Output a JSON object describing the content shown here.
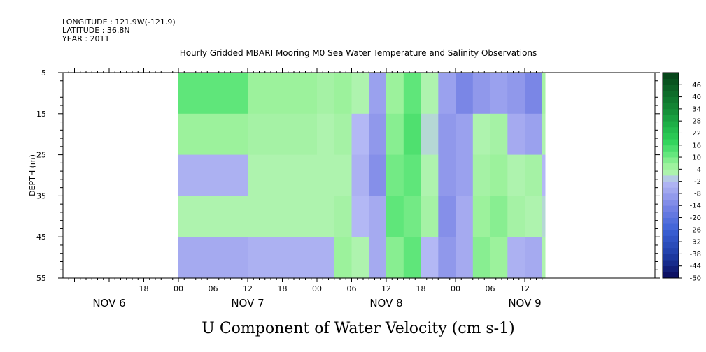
{
  "header": {
    "longitude": "LONGITUDE : 121.9W(-121.9)",
    "latitude": "LATITUDE : 36.8N",
    "year": "YEAR : 2011"
  },
  "chart_data": {
    "type": "heatmap",
    "title": "Hourly Gridded MBARI Mooring M0 Sea Water Temperature and Salinity Observations",
    "xlabel": "",
    "ylabel": "DEPTH (m)",
    "subtitle": "U Component of Water Velocity (cm s-1)",
    "x_tick_labels": [
      "18",
      "00",
      "06",
      "12",
      "18",
      "00",
      "06",
      "12",
      "18",
      "00",
      "06",
      "12"
    ],
    "x_day_labels": [
      "NOV 6",
      "NOV 7",
      "NOV 8",
      "NOV 9"
    ],
    "y_tick_labels": [
      "5",
      "15",
      "25",
      "35",
      "45",
      "55"
    ],
    "ylim": [
      55,
      5
    ],
    "depths": [
      10,
      20,
      30,
      40,
      50
    ],
    "times": [
      "Nov 7 00:00",
      "Nov 7 12:00",
      "Nov 8 00:00",
      "Nov 8 03:00",
      "Nov 8 06:00",
      "Nov 8 09:00",
      "Nov 8 12:00",
      "Nov 8 15:00",
      "Nov 8 18:00",
      "Nov 8 21:00",
      "Nov 9 00:00",
      "Nov 9 03:00",
      "Nov 9 06:00",
      "Nov 9 09:00",
      "Nov 9 12:00",
      "Nov 9 15:00"
    ],
    "values": [
      [
        12,
        6,
        4,
        6,
        2,
        -8,
        6,
        12,
        2,
        -8,
        -14,
        -10,
        -8,
        -10,
        -14,
        4
      ],
      [
        6,
        4,
        2,
        4,
        -2,
        -10,
        8,
        14,
        0,
        -10,
        -8,
        2,
        4,
        -6,
        -8,
        2
      ],
      [
        -4,
        2,
        2,
        2,
        -4,
        -12,
        10,
        12,
        2,
        -10,
        -8,
        4,
        6,
        2,
        4,
        -2
      ],
      [
        2,
        2,
        2,
        4,
        -2,
        -6,
        12,
        10,
        4,
        -12,
        -6,
        6,
        8,
        4,
        2,
        0
      ],
      [
        -6,
        -4,
        -4,
        6,
        2,
        -6,
        8,
        12,
        -2,
        -10,
        -6,
        8,
        6,
        -4,
        -6,
        2
      ]
    ],
    "colorbar": {
      "labels": [
        "46",
        "40",
        "34",
        "28",
        "22",
        "16",
        "10",
        "4",
        "-2",
        "-8",
        "-14",
        "-20",
        "-26",
        "-32",
        "-38",
        "-44",
        "-50"
      ],
      "min": -50,
      "max": 52,
      "step": 3
    },
    "grid": false,
    "legend": "right"
  }
}
